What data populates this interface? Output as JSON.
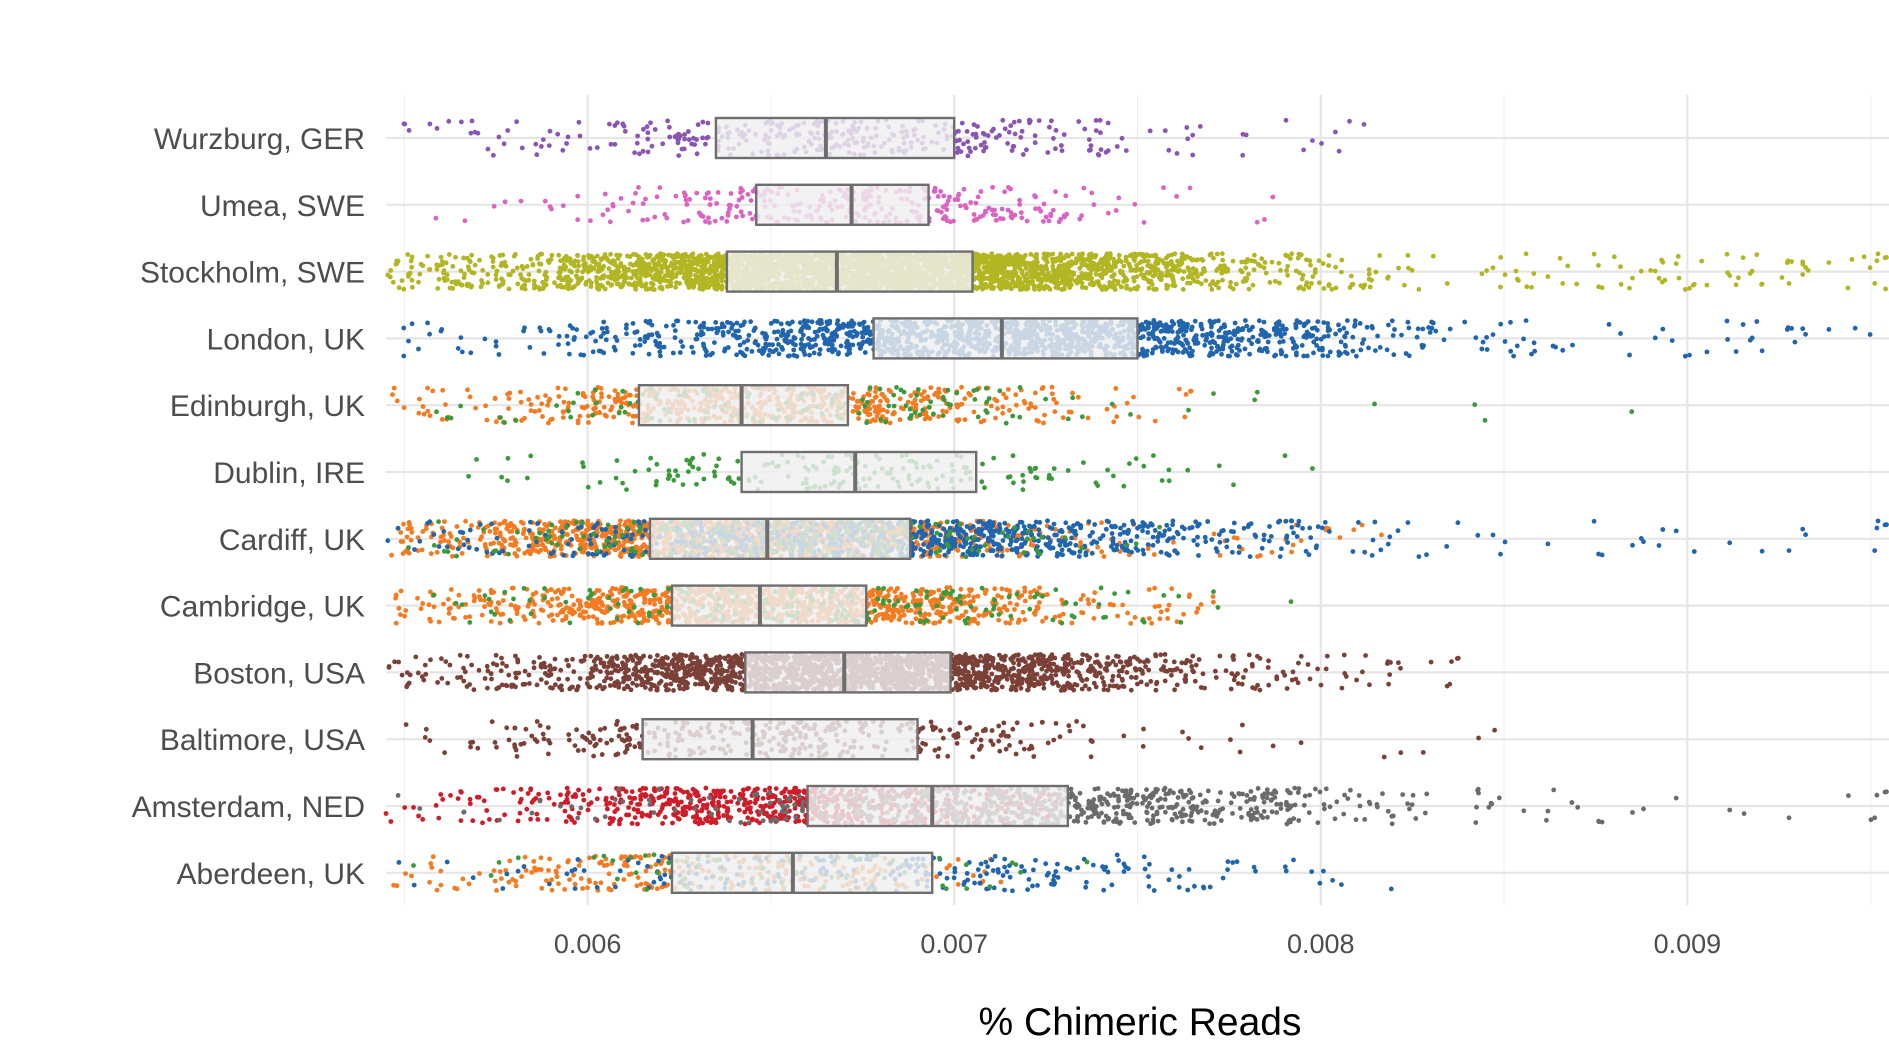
{
  "chart_data": {
    "type": "box-jitter",
    "xlabel": "% Chimeric Reads",
    "ylabel": "",
    "xlim": [
      0.00545,
      0.00955
    ],
    "x_ticks": [
      0.006,
      0.007,
      0.008,
      0.009
    ],
    "x_tick_labels": [
      "0.006",
      "0.007",
      "0.008",
      "0.009"
    ],
    "grid": true,
    "legend": "none",
    "categories": [
      "Wurzburg, GER",
      "Umea, SWE",
      "Stockholm, SWE",
      "London, UK",
      "Edinburgh, UK",
      "Dublin, IRE",
      "Cardiff, UK",
      "Cambridge, UK",
      "Boston, USA",
      "Baltimore, USA",
      "Amsterdam, NED",
      "Aberdeen, UK"
    ],
    "boxes": [
      {
        "category": "Wurzburg, GER",
        "q1": 0.00635,
        "median": 0.00665,
        "q3": 0.007
      },
      {
        "category": "Umea, SWE",
        "q1": 0.00646,
        "median": 0.00672,
        "q3": 0.00693
      },
      {
        "category": "Stockholm, SWE",
        "q1": 0.00638,
        "median": 0.00668,
        "q3": 0.00705
      },
      {
        "category": "London, UK",
        "q1": 0.00678,
        "median": 0.00713,
        "q3": 0.0075
      },
      {
        "category": "Edinburgh, UK",
        "q1": 0.00614,
        "median": 0.00642,
        "q3": 0.00671
      },
      {
        "category": "Dublin, IRE",
        "q1": 0.00642,
        "median": 0.00673,
        "q3": 0.00706
      },
      {
        "category": "Cardiff, UK",
        "q1": 0.00617,
        "median": 0.00649,
        "q3": 0.00688
      },
      {
        "category": "Cambridge, UK",
        "q1": 0.00623,
        "median": 0.00647,
        "q3": 0.00676
      },
      {
        "category": "Boston, USA",
        "q1": 0.00643,
        "median": 0.0067,
        "q3": 0.00699
      },
      {
        "category": "Baltimore, USA",
        "q1": 0.00615,
        "median": 0.00645,
        "q3": 0.0069
      },
      {
        "category": "Amsterdam, NED",
        "q1": 0.0066,
        "median": 0.00694,
        "q3": 0.00731
      },
      {
        "category": "Aberdeen, UK",
        "q1": 0.00623,
        "median": 0.00656,
        "q3": 0.00694
      }
    ],
    "point_groups": [
      {
        "category": "Wurzburg, GER",
        "color": "#8a55b4",
        "n": 360,
        "min": 0.00546,
        "max": 0.00823,
        "center": 0.00667,
        "spread": 0.00048
      },
      {
        "category": "Umea, SWE",
        "color": "#db63c2",
        "n": 320,
        "min": 0.00553,
        "max": 0.00795,
        "center": 0.00669,
        "spread": 0.00036
      },
      {
        "category": "Stockholm, SWE",
        "color": "#b2b622",
        "n": 3200,
        "min": 0.00545,
        "max": 0.00955,
        "center": 0.00672,
        "spread": 0.00052
      },
      {
        "category": "London, UK",
        "color": "#2065ad",
        "n": 1500,
        "min": 0.00545,
        "max": 0.00955,
        "center": 0.00714,
        "spread": 0.00055
      },
      {
        "category": "Edinburgh, UK",
        "color": "#f57b20",
        "n": 620,
        "min": 0.00545,
        "max": 0.00765,
        "center": 0.00645,
        "spread": 0.00042
      },
      {
        "category": "Edinburgh, UK",
        "color": "#3b9a3b",
        "n": 140,
        "min": 0.00545,
        "max": 0.0094,
        "center": 0.00655,
        "spread": 0.00045
      },
      {
        "category": "Dublin, IRE",
        "color": "#3b9a3b",
        "n": 190,
        "min": 0.00565,
        "max": 0.00822,
        "center": 0.00675,
        "spread": 0.00042
      },
      {
        "category": "Cardiff, UK",
        "color": "#f57b20",
        "n": 1300,
        "min": 0.00545,
        "max": 0.0082,
        "center": 0.00635,
        "spread": 0.00042
      },
      {
        "category": "Cardiff, UK",
        "color": "#2065ad",
        "n": 900,
        "min": 0.00545,
        "max": 0.00955,
        "center": 0.00685,
        "spread": 0.00055
      },
      {
        "category": "Cardiff, UK",
        "color": "#3b9a3b",
        "n": 200,
        "min": 0.00545,
        "max": 0.0078,
        "center": 0.00648,
        "spread": 0.00042
      },
      {
        "category": "Cambridge, UK",
        "color": "#f57b20",
        "n": 1100,
        "min": 0.00545,
        "max": 0.0078,
        "center": 0.00648,
        "spread": 0.00042
      },
      {
        "category": "Cambridge, UK",
        "color": "#3b9a3b",
        "n": 200,
        "min": 0.00545,
        "max": 0.00795,
        "center": 0.00662,
        "spread": 0.00045
      },
      {
        "category": "Boston, USA",
        "color": "#7b4037",
        "n": 2000,
        "min": 0.00545,
        "max": 0.00838,
        "center": 0.0067,
        "spread": 0.00045
      },
      {
        "category": "Baltimore, USA",
        "color": "#7b4037",
        "n": 380,
        "min": 0.00545,
        "max": 0.0086,
        "center": 0.00652,
        "spread": 0.00048
      },
      {
        "category": "Amsterdam, NED",
        "color": "#d01c29",
        "n": 700,
        "min": 0.00545,
        "max": 0.0073,
        "center": 0.00655,
        "spread": 0.0004
      },
      {
        "category": "Amsterdam, NED",
        "color": "#6b6b6b",
        "n": 650,
        "min": 0.00545,
        "max": 0.00955,
        "center": 0.00725,
        "spread": 0.0005
      },
      {
        "category": "Aberdeen, UK",
        "color": "#f57b20",
        "n": 260,
        "min": 0.00545,
        "max": 0.00715,
        "center": 0.0063,
        "spread": 0.0004
      },
      {
        "category": "Aberdeen, UK",
        "color": "#2065ad",
        "n": 240,
        "min": 0.00545,
        "max": 0.00845,
        "center": 0.00685,
        "spread": 0.0005
      },
      {
        "category": "Aberdeen, UK",
        "color": "#3b9a3b",
        "n": 60,
        "min": 0.00545,
        "max": 0.0075,
        "center": 0.00655,
        "spread": 0.0004
      }
    ],
    "box_fill": "#efefef",
    "box_stroke": "#6e6e6e"
  }
}
